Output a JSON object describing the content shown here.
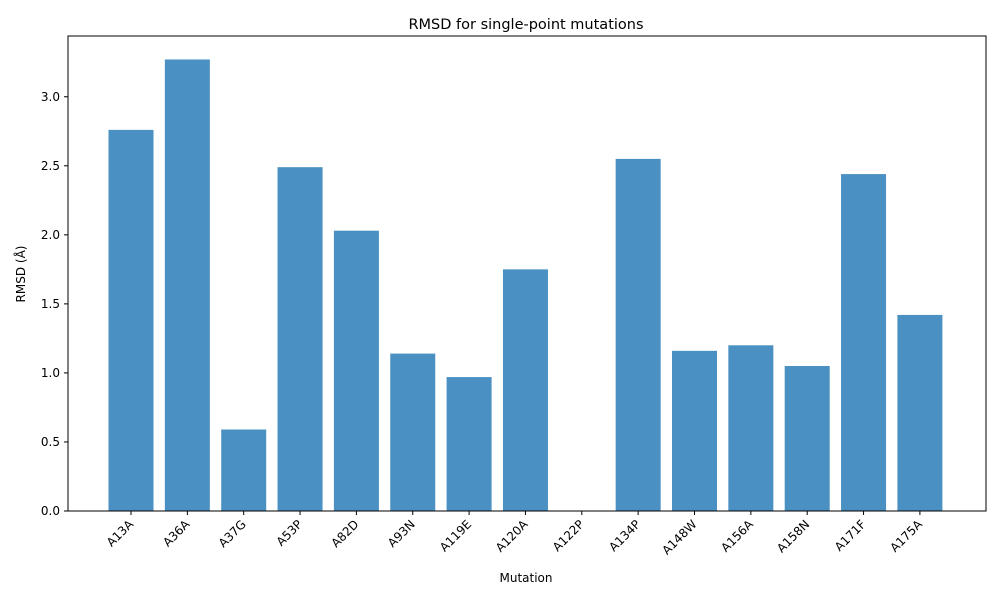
{
  "chart_data": {
    "type": "bar",
    "title": "RMSD for single-point mutations",
    "xlabel": "Mutation",
    "ylabel": "RMSD (Å)",
    "categories": [
      "A13A",
      "A36A",
      "A37G",
      "A53P",
      "A82D",
      "A93N",
      "A119E",
      "A120A",
      "A122P",
      "A134P",
      "A148W",
      "A156A",
      "A158N",
      "A171F",
      "A175A"
    ],
    "values": [
      2.76,
      3.27,
      0.59,
      2.49,
      2.03,
      1.14,
      0.97,
      1.75,
      0.0,
      2.55,
      1.16,
      1.2,
      1.05,
      2.44,
      1.42
    ],
    "ylim": [
      0,
      3.44
    ],
    "yticks": [
      0.0,
      0.5,
      1.0,
      1.5,
      2.0,
      2.5,
      3.0
    ],
    "ytick_labels": [
      "0.0",
      "0.5",
      "1.0",
      "1.5",
      "2.0",
      "2.5",
      "3.0"
    ],
    "bar_color": "#4a90c2",
    "grid": false,
    "legend": "none"
  }
}
